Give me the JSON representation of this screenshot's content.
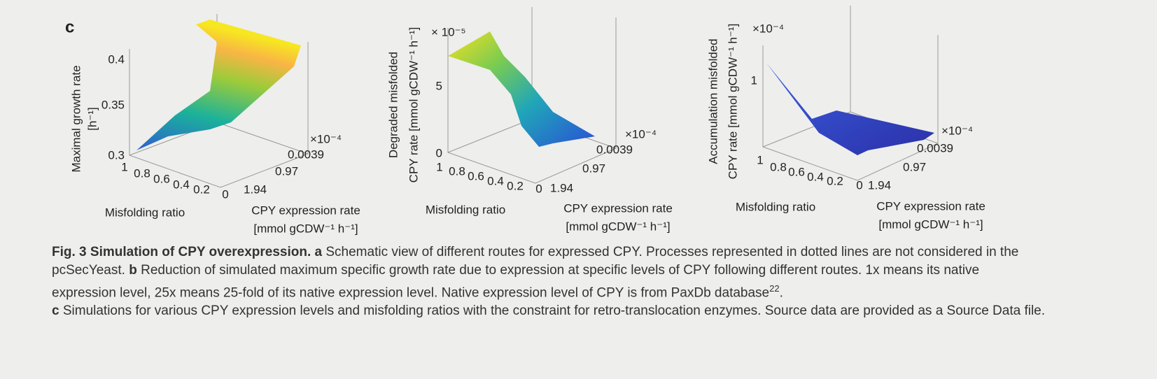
{
  "panel_label": "c",
  "panels": [
    {
      "z_label": [
        "Maximal growth rate",
        "[h⁻¹]"
      ],
      "z_ticks": [
        0.4,
        0.35,
        0.3
      ],
      "z_multiplier": null,
      "x_label": "Misfolding ratio",
      "x_ticks": [
        1,
        0.8,
        0.6,
        0.4,
        0.2,
        0
      ],
      "y_label": [
        "CPY expression rate",
        "[mmol gCDW⁻¹ h⁻¹]"
      ],
      "y_ticks": [
        0.0039,
        0.97,
        1.94
      ],
      "y_multiplier": "×10⁻⁴"
    },
    {
      "z_label": [
        "Degraded misfolded",
        "CPY rate [mmol gCDW⁻¹ h⁻¹]"
      ],
      "z_ticks": [
        5,
        0
      ],
      "z_multiplier": "× 10⁻⁵",
      "x_label": "Misfolding ratio",
      "x_ticks": [
        1,
        0.8,
        0.6,
        0.4,
        0.2,
        0
      ],
      "y_label": [
        "CPY expression rate",
        "[mmol gCDW⁻¹ h⁻¹]"
      ],
      "y_ticks": [
        0.0039,
        0.97,
        1.94
      ],
      "y_multiplier": "×10⁻⁴"
    },
    {
      "z_label": [
        "Accumulation misfolded",
        "CPY rate [mmol gCDW⁻¹ h⁻¹]"
      ],
      "z_ticks": [
        1
      ],
      "z_multiplier": "×10⁻⁴",
      "x_label": "Misfolding ratio",
      "x_ticks": [
        1,
        0.8,
        0.6,
        0.4,
        0.2,
        0
      ],
      "y_label": [
        "CPY expression rate",
        "[mmol gCDW⁻¹ h⁻¹]"
      ],
      "y_ticks": [
        0.0039,
        0.97,
        1.94
      ],
      "y_multiplier": "×10⁻⁴"
    }
  ],
  "caption": [
    [
      {
        "text": "Fig. 3 Simulation of CPY overexpression. a",
        "bold": true
      },
      {
        "text": " Schematic view of different routes for expressed CPY. Processes represented in dotted lines are not considered in the pcSecYeast. "
      },
      {
        "text": "b",
        "bold": true
      },
      {
        "text": " Reduction of simulated maximum specific growth rate due to expression at specific levels of CPY following different routes. 1x means its native expression level, 25x means 25-fold of its native expression level. Native expression level of CPY is from PaxDb database"
      },
      {
        "text": "22",
        "sup": true
      },
      {
        "text": "."
      }
    ],
    [
      {
        "text": "c",
        "bold": true
      },
      {
        "text": " Simulations for various CPY expression levels and misfolding ratios with the constraint for retro-translocation enzymes. Source data are provided as a Source Data file."
      }
    ]
  ]
}
